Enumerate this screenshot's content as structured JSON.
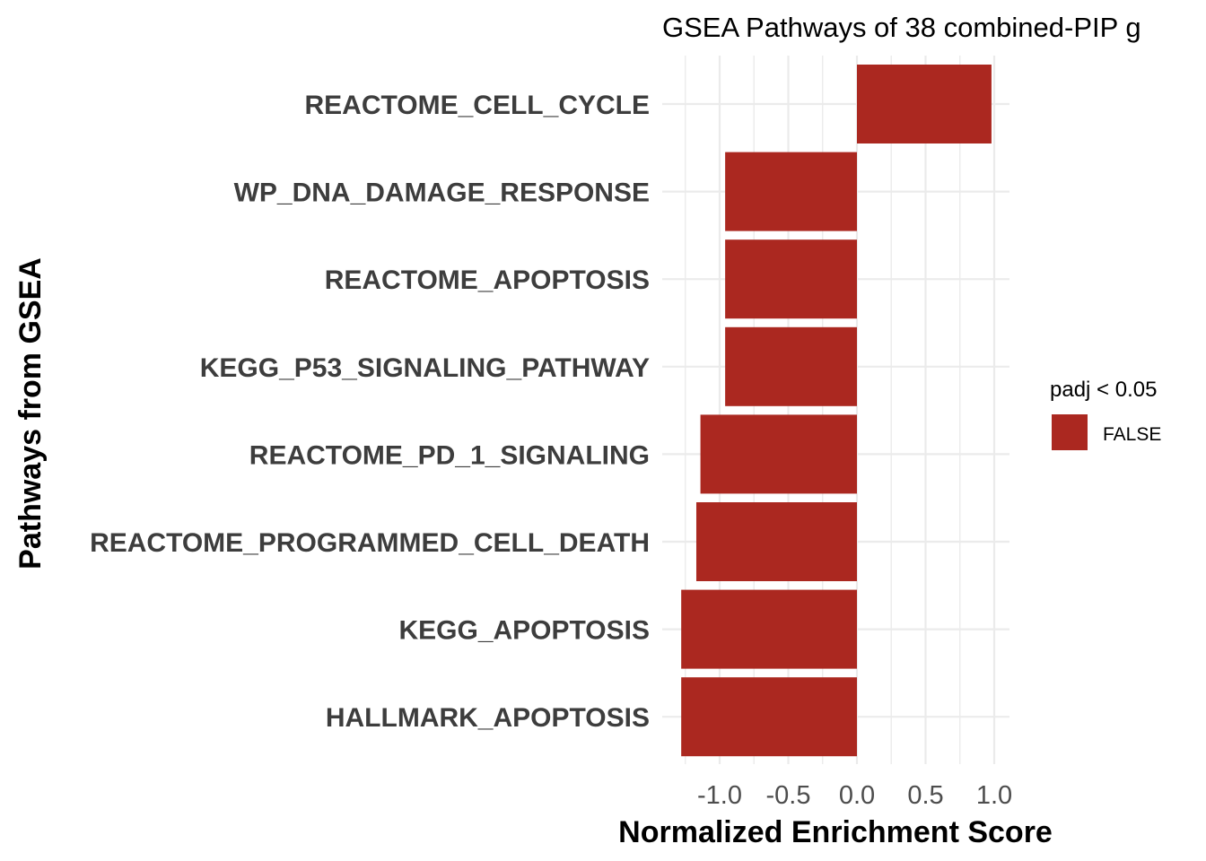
{
  "chart_data": {
    "type": "bar",
    "orientation": "horizontal",
    "title": "GSEA Pathways of 38 combined-PIP g",
    "xlabel": "Normalized Enrichment Score",
    "ylabel": "Pathways from GSEA",
    "categories": [
      "REACTOME_CELL_CYCLE",
      "WP_DNA_DAMAGE_RESPONSE",
      "REACTOME_APOPTOSIS",
      "KEGG_P53_SIGNALING_PATHWAY",
      "REACTOME_PD_1_SIGNALING",
      "REACTOME_PROGRAMMED_CELL_DEATH",
      "KEGG_APOPTOSIS",
      "HALLMARK_APOPTOSIS"
    ],
    "values": [
      0.98,
      -0.96,
      -0.96,
      -0.96,
      -1.14,
      -1.17,
      -1.28,
      -1.28
    ],
    "xlim": [
      -1.3,
      1.1
    ],
    "xticks": [
      -1.0,
      -0.5,
      0.0,
      0.5,
      1.0
    ],
    "xtick_labels": [
      "-1.0",
      "-0.5",
      "0.0",
      "0.5",
      "1.0"
    ],
    "grid": true,
    "bar_color": "#ab2820",
    "legend": {
      "title": "padj < 0.05",
      "position": "right",
      "entries": [
        {
          "label": "FALSE",
          "color": "#ab2820"
        }
      ]
    }
  }
}
